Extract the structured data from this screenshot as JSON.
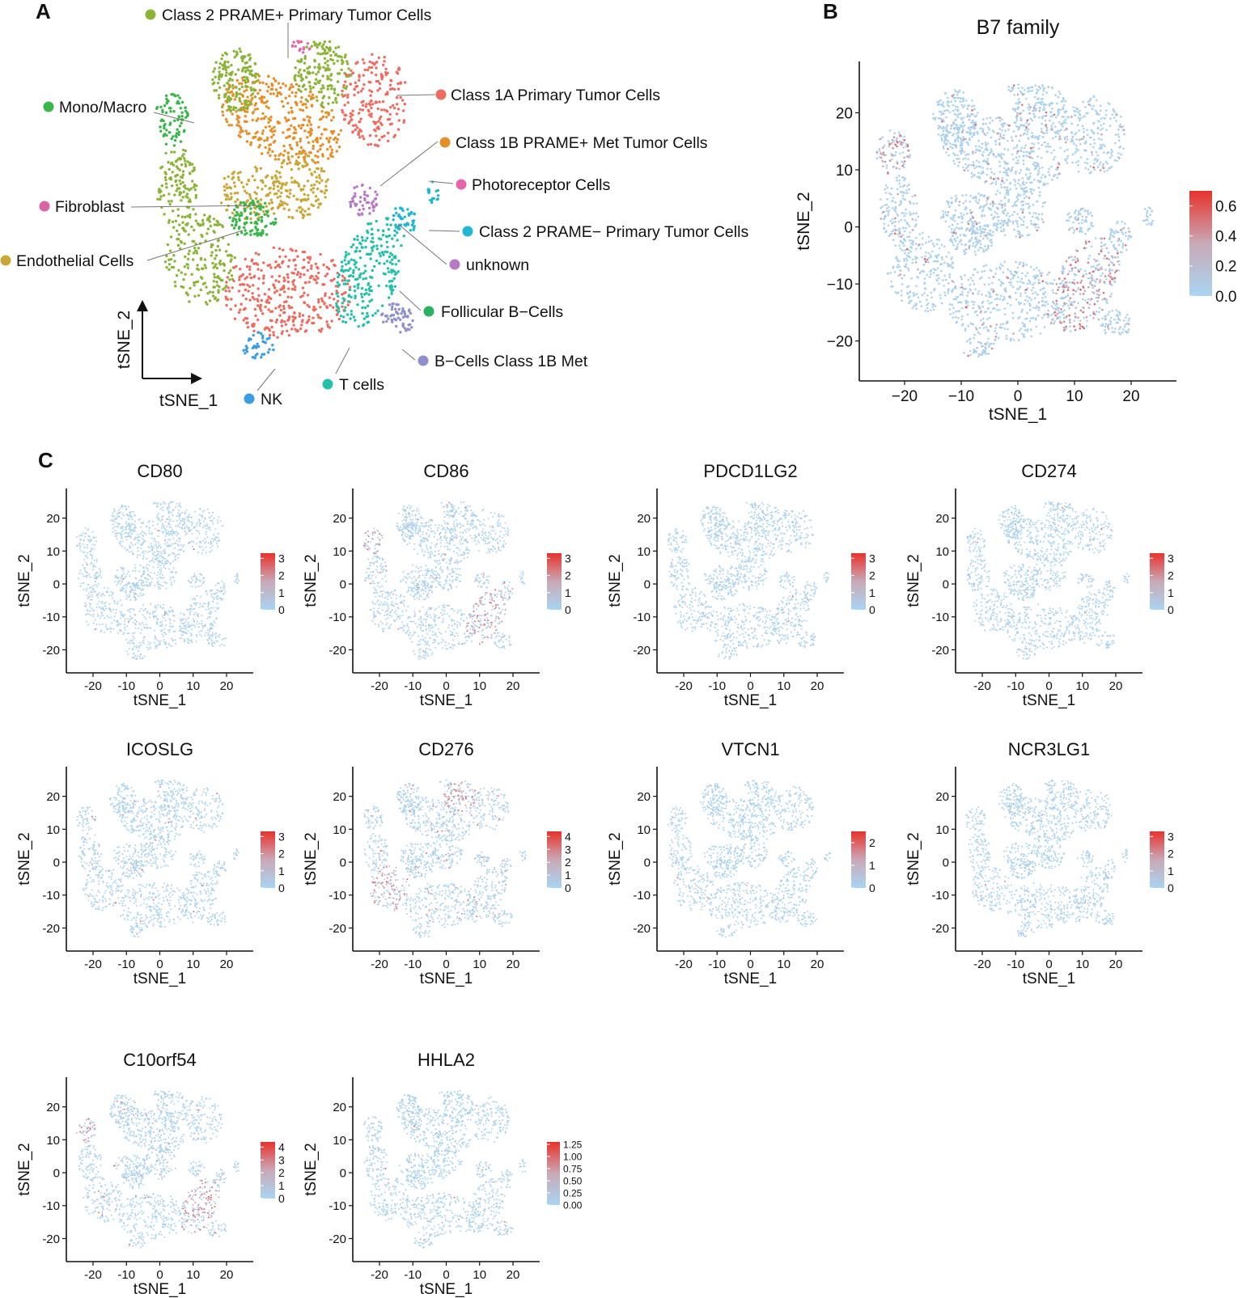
{
  "colors": {
    "low": "#a9d5f2",
    "mid": "#c9a9b6",
    "high": "#e8322c",
    "axis": "#111111"
  },
  "chart_data": [
    {
      "panel": "A",
      "type": "scatter",
      "xlabel": "tSNE_1",
      "ylabel": "tSNE_2",
      "legend_entries": [
        {
          "label": "Class 2 PRAME+ Primary Tumor Cells",
          "color": "#8cb33a"
        },
        {
          "label": "Class 1A Primary Tumor Cells",
          "color": "#ec6d60"
        },
        {
          "label": "Class 1B PRAME+ Met Tumor Cells",
          "color": "#e58f2a"
        },
        {
          "label": "Mono/Macro",
          "color": "#3ab54a"
        },
        {
          "label": "Photoreceptor Cells",
          "color": "#e466a8"
        },
        {
          "label": "Fibroblast",
          "color": "#d864a6"
        },
        {
          "label": "Class 2 PRAME− Primary Tumor Cells",
          "color": "#23b6d2"
        },
        {
          "label": "unknown",
          "color": "#b57ac4"
        },
        {
          "label": "Endothelial Cells",
          "color": "#c9a83a"
        },
        {
          "label": "Follicular B−Cells",
          "color": "#2bb061"
        },
        {
          "label": "B−Cells Class 1B Met",
          "color": "#8f8fcb"
        },
        {
          "label": "T cells",
          "color": "#26bfa9"
        },
        {
          "label": "NK",
          "color": "#3a9ee0"
        }
      ]
    },
    {
      "panel": "B",
      "type": "scatter",
      "title": "B7 family",
      "xlabel": "tSNE_1",
      "ylabel": "tSNE_2",
      "xlim": [
        -28,
        28
      ],
      "ylim": [
        -27,
        29
      ],
      "xticks": [
        -20,
        -10,
        0,
        10,
        20
      ],
      "yticks": [
        -20,
        -10,
        0,
        10,
        20
      ],
      "xtick_labels": [
        "−20",
        "−10",
        "0",
        "10",
        "20"
      ],
      "ytick_labels": [
        "−20",
        "−10",
        "0",
        "10",
        "20"
      ],
      "colorbar": {
        "min": 0.0,
        "max": 0.7,
        "ticks": [
          0.0,
          0.2,
          0.4,
          0.6
        ],
        "tick_labels": [
          "0.0",
          "0.2",
          "0.4",
          "0.6"
        ]
      },
      "expression": 0.12
    },
    {
      "panel": "C",
      "type": "scatter",
      "xlabel": "tSNE_1",
      "ylabel": "tSNE_2",
      "xlim": [
        -28,
        28
      ],
      "ylim": [
        -27,
        29
      ],
      "xticks": [
        -20,
        -10,
        0,
        10,
        20
      ],
      "yticks": [
        -20,
        -10,
        0,
        10,
        20
      ],
      "xtick_labels": [
        "-20",
        "-10",
        "0",
        "10",
        "20"
      ],
      "ytick_labels": [
        "-20",
        "-10",
        "0",
        "10",
        "20"
      ],
      "genes": [
        {
          "title": "CD80",
          "cb_max": 3.3,
          "cb_ticks": [
            0,
            1,
            2,
            3
          ],
          "cb_labels": [
            "0",
            "1",
            "2",
            "3"
          ],
          "expression": 0.02
        },
        {
          "title": "CD86",
          "cb_max": 3.3,
          "cb_ticks": [
            0,
            1,
            2,
            3
          ],
          "cb_labels": [
            "0",
            "1",
            "2",
            "3"
          ],
          "expression": 0.06
        },
        {
          "title": "PDCD1LG2",
          "cb_max": 3.3,
          "cb_ticks": [
            0,
            1,
            2,
            3
          ],
          "cb_labels": [
            "0",
            "1",
            "2",
            "3"
          ],
          "expression": 0.01
        },
        {
          "title": "CD274",
          "cb_max": 3.3,
          "cb_ticks": [
            0,
            1,
            2,
            3
          ],
          "cb_labels": [
            "0",
            "1",
            "2",
            "3"
          ],
          "expression": 0.01
        },
        {
          "title": "ICOSLG",
          "cb_max": 3.3,
          "cb_ticks": [
            0,
            1,
            2,
            3
          ],
          "cb_labels": [
            "0",
            "1",
            "2",
            "3"
          ],
          "expression": 0.03
        },
        {
          "title": "CD276",
          "cb_max": 4.4,
          "cb_ticks": [
            0,
            1,
            2,
            3,
            4
          ],
          "cb_labels": [
            "0",
            "1",
            "2",
            "3",
            "4"
          ],
          "expression": 0.08
        },
        {
          "title": "VTCN1",
          "cb_max": 2.5,
          "cb_ticks": [
            0,
            1,
            2
          ],
          "cb_labels": [
            "0",
            "1",
            "2"
          ],
          "expression": 0.01
        },
        {
          "title": "NCR3LG1",
          "cb_max": 3.3,
          "cb_ticks": [
            0,
            1,
            2,
            3
          ],
          "cb_labels": [
            "0",
            "1",
            "2",
            "3"
          ],
          "expression": 0.01
        },
        {
          "title": "C10orf54",
          "cb_max": 4.4,
          "cb_ticks": [
            0,
            1,
            2,
            3,
            4
          ],
          "cb_labels": [
            "0",
            "1",
            "2",
            "3",
            "4"
          ],
          "expression": 0.07
        },
        {
          "title": "HHLA2",
          "cb_max": 1.3,
          "cb_ticks": [
            0,
            0.25,
            0.5,
            0.75,
            1.0,
            1.25
          ],
          "cb_labels": [
            "0.00",
            "0.25",
            "0.50",
            "0.75",
            "1.00",
            "1.25"
          ],
          "expression": 0.01
        }
      ]
    }
  ],
  "panel_labels": [
    "A",
    "B",
    "C"
  ]
}
